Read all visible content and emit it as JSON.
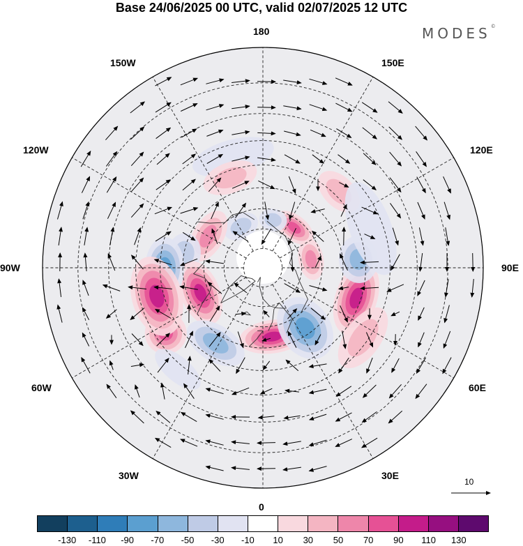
{
  "title": "Base 24/06/2025 00 UTC, valid 02/07/2025 12 UTC",
  "brand": "MODES",
  "brand_mark": "©",
  "longitude_labels": {
    "top": "180",
    "bottom": "0",
    "left": "90W",
    "right": "90E",
    "upper_left": "150W",
    "upper_right": "150E",
    "upper_left2": "120W",
    "upper_right2": "120E",
    "lower_left": "60W",
    "lower_right": "60E",
    "lower_left2": "30W",
    "lower_right2": "30E"
  },
  "reference_vector": {
    "label": "10"
  },
  "colorbar": {
    "colors": [
      "#123f5e",
      "#1d5f8e",
      "#2f7db8",
      "#5b9fd0",
      "#8eb7dd",
      "#bfcbe6",
      "#e1e3f2",
      "#ffffff",
      "#f9d9df",
      "#f4b5c2",
      "#ee86aa",
      "#e65195",
      "#c41c8a",
      "#960f80",
      "#5e0a6e"
    ],
    "ticks": [
      "-130",
      "-110",
      "-90",
      "-70",
      "-50",
      "-30",
      "-10",
      "10",
      "30",
      "50",
      "70",
      "90",
      "110",
      "130"
    ]
  },
  "anomalies": [
    {
      "lon": 100,
      "colat": 25,
      "rx": 30,
      "ry": 18,
      "level": 3
    },
    {
      "lon": 142,
      "colat": 26,
      "rx": 32,
      "ry": 18,
      "level": 4
    },
    {
      "lon": 208,
      "colat": 24,
      "rx": 26,
      "ry": 18,
      "level": -2
    },
    {
      "lon": 168,
      "colat": 25,
      "rx": 20,
      "ry": 16,
      "level": -2
    },
    {
      "lon": 240,
      "colat": 32,
      "rx": 40,
      "ry": 22,
      "level": 3
    },
    {
      "lon": 260,
      "colat": 40,
      "rx": 30,
      "ry": 24,
      "level": -2
    },
    {
      "lon": 292,
      "colat": 34,
      "rx": 48,
      "ry": 28,
      "level": 5
    },
    {
      "lon": 270,
      "colat": 48,
      "rx": 44,
      "ry": 28,
      "level": -4
    },
    {
      "lon": 304,
      "colat": 56,
      "rx": 30,
      "ry": 30,
      "level": 4
    },
    {
      "lon": 285,
      "colat": 53,
      "rx": 58,
      "ry": 36,
      "level": 5
    },
    {
      "lon": 328,
      "colat": 44,
      "rx": 46,
      "ry": 26,
      "level": -3
    },
    {
      "lon": 8,
      "colat": 35,
      "rx": 48,
      "ry": 24,
      "level": 5
    },
    {
      "lon": 35,
      "colat": 37,
      "rx": 36,
      "ry": 48,
      "level": -4
    },
    {
      "lon": 72,
      "colat": 48,
      "rx": 54,
      "ry": 30,
      "level": 5
    },
    {
      "lon": 95,
      "colat": 47,
      "rx": 34,
      "ry": 28,
      "level": -3
    },
    {
      "lon": 55,
      "colat": 58,
      "rx": 50,
      "ry": 26,
      "level": 2
    },
    {
      "lon": 135,
      "colat": 52,
      "rx": 36,
      "ry": 22,
      "level": 2
    },
    {
      "lon": 110,
      "colat": 55,
      "rx": 70,
      "ry": 30,
      "level": -1
    },
    {
      "lon": 320,
      "colat": 62,
      "rx": 40,
      "ry": 18,
      "level": -1
    },
    {
      "lon": 195,
      "colat": 55,
      "rx": 60,
      "ry": 25,
      "level": -1
    },
    {
      "lon": 200,
      "colat": 47,
      "rx": 40,
      "ry": 22,
      "level": 2
    }
  ]
}
